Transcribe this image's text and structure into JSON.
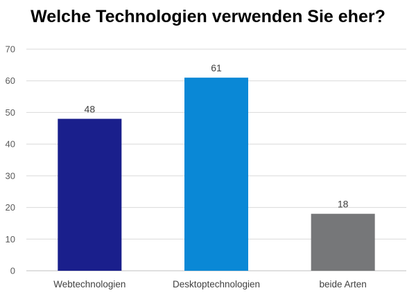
{
  "chart_data": {
    "type": "bar",
    "title": "Welche Technologien verwenden Sie eher?",
    "categories": [
      "Webtechnologien",
      "Desktoptechnologien",
      "beide Arten"
    ],
    "values": [
      48,
      61,
      18
    ],
    "colors": [
      "#1a1f8c",
      "#0a88d6",
      "#767779"
    ],
    "ylim": [
      0,
      70
    ],
    "yticks": [
      0,
      10,
      20,
      30,
      40,
      50,
      60,
      70
    ],
    "grid": true,
    "data_labels": true,
    "xlabel": "",
    "ylabel": ""
  }
}
